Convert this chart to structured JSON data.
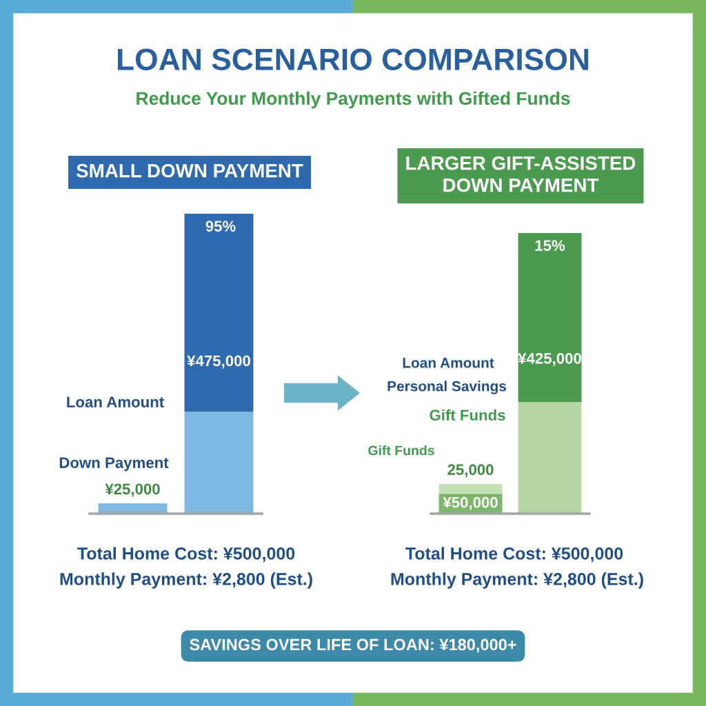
{
  "chart_data": [
    {
      "type": "bar",
      "title": "SMALL DOWN PAYMENT",
      "categories": [
        null,
        null
      ],
      "stacked": true,
      "series": [
        {
          "colors": [
            "#7fb8e0",
            "#7fb8e0"
          ],
          "values": [
            25000,
            245000
          ],
          "value_labels": [
            "¥25,000",
            null
          ]
        },
        {
          "color": "#2e6aad",
          "values": [
            null,
            475000
          ],
          "value_labels": [
            null,
            "¥475,000"
          ]
        }
      ],
      "annotations": [
        "LOAN SCENARIO COMPARISON",
        "Reduce Your Monthly Payments with Gifted Funds",
        "Loan Amount",
        "Down Payment",
        "95%",
        "Total Home Cost: ¥500,000",
        "Monthly Payment: ¥2,800 (Est.)"
      ]
    },
    {
      "type": "bar",
      "title": "LARGER GIFT-ASSISTED\nDOWN PAYMENT",
      "categories": [
        null,
        null
      ],
      "stacked": true,
      "series": [
        {
          "colors": [
            "#7cb66a",
            "#b6d8a4"
          ],
          "values": [
            50000,
            281000
          ],
          "value_labels": [
            "¥50,000",
            null
          ]
        },
        {
          "colors": [
            "#c5e0b4",
            "#4b9a4f"
          ],
          "values": [
            25000,
            425000
          ],
          "value_labels": [
            "25,000",
            "¥425,000"
          ]
        }
      ],
      "annotations": [
        "15%",
        "Loan Amount",
        "Personal Savings",
        "Gift Funds",
        "Gift Funds",
        "Total Home Cost: ¥500,000",
        "Monthly Payment: ¥2,800 (Est.)",
        "SAVINGS OVER LIFE OF LOAN: ¥180,000+"
      ]
    }
  ]
}
